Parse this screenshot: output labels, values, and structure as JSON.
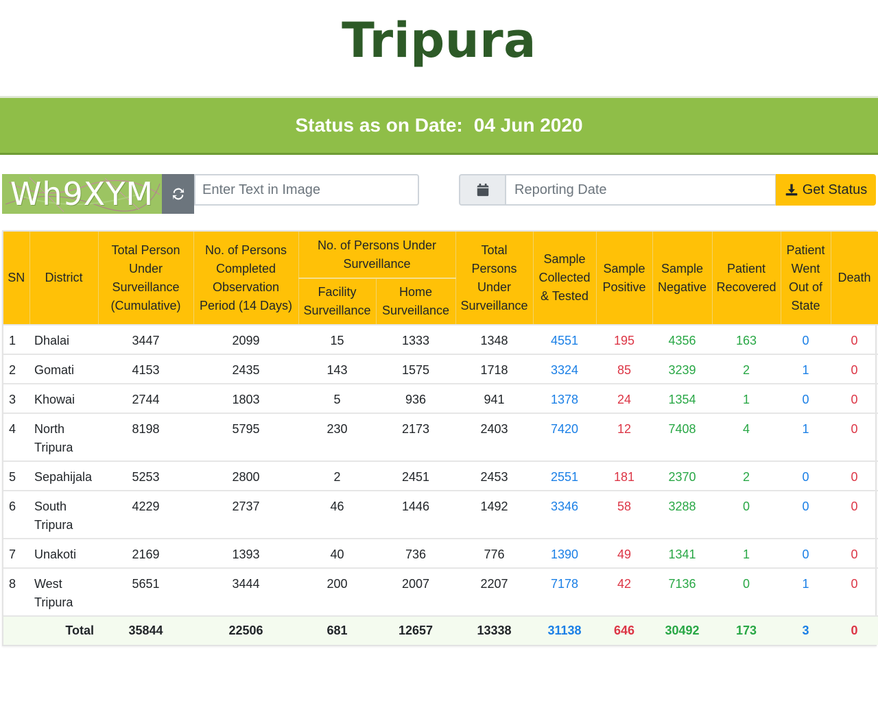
{
  "page_title": "Tripura",
  "status": {
    "label": "Status as on Date:",
    "date": "04 Jun 2020"
  },
  "captcha": {
    "text": "Wh9XYM",
    "input_placeholder": "Enter Text in Image"
  },
  "date_field": {
    "placeholder": "Reporting Date",
    "icon": "calendar-icon"
  },
  "get_status_button": {
    "label": "Get Status",
    "icon": "download-icon"
  },
  "colors": {
    "title": "#2d5a27",
    "status_bar": "#8fbe48",
    "header": "#ffc107",
    "collected": "#1a7fe6",
    "positive": "#dc3545",
    "negative": "#28a745"
  },
  "table": {
    "headers": {
      "sn": "SN",
      "district": "District",
      "total_under_surveillance_cum": "Total Person Under Surveillance (Cumulative)",
      "completed_observation": "No. of Persons Completed Observation Period (14 Days)",
      "under_surveillance_group": "No. of Persons Under Surveillance",
      "facility": "Facility Surveillance",
      "home": "Home Surveillance",
      "total_under_surveillance": "Total Persons Under Surveillance",
      "sample_collected": "Sample Collected & Tested",
      "sample_positive": "Sample Positive",
      "sample_negative": "Sample Negative",
      "patient_recovered": "Patient Recovered",
      "patient_out": "Patient Went Out of State",
      "death": "Death"
    },
    "rows": [
      {
        "sn": "1",
        "district": "Dhalai",
        "cum": "3447",
        "completed": "2099",
        "facility": "15",
        "home": "1333",
        "total": "1348",
        "collected": "4551",
        "positive": "195",
        "negative": "4356",
        "recovered": "163",
        "out": "0",
        "death": "0"
      },
      {
        "sn": "2",
        "district": "Gomati",
        "cum": "4153",
        "completed": "2435",
        "facility": "143",
        "home": "1575",
        "total": "1718",
        "collected": "3324",
        "positive": "85",
        "negative": "3239",
        "recovered": "2",
        "out": "1",
        "death": "0"
      },
      {
        "sn": "3",
        "district": "Khowai",
        "cum": "2744",
        "completed": "1803",
        "facility": "5",
        "home": "936",
        "total": "941",
        "collected": "1378",
        "positive": "24",
        "negative": "1354",
        "recovered": "1",
        "out": "0",
        "death": "0"
      },
      {
        "sn": "4",
        "district": "North Tripura",
        "cum": "8198",
        "completed": "5795",
        "facility": "230",
        "home": "2173",
        "total": "2403",
        "collected": "7420",
        "positive": "12",
        "negative": "7408",
        "recovered": "4",
        "out": "1",
        "death": "0"
      },
      {
        "sn": "5",
        "district": "Sepahijala",
        "cum": "5253",
        "completed": "2800",
        "facility": "2",
        "home": "2451",
        "total": "2453",
        "collected": "2551",
        "positive": "181",
        "negative": "2370",
        "recovered": "2",
        "out": "0",
        "death": "0"
      },
      {
        "sn": "6",
        "district": "South Tripura",
        "cum": "4229",
        "completed": "2737",
        "facility": "46",
        "home": "1446",
        "total": "1492",
        "collected": "3346",
        "positive": "58",
        "negative": "3288",
        "recovered": "0",
        "out": "0",
        "death": "0"
      },
      {
        "sn": "7",
        "district": "Unakoti",
        "cum": "2169",
        "completed": "1393",
        "facility": "40",
        "home": "736",
        "total": "776",
        "collected": "1390",
        "positive": "49",
        "negative": "1341",
        "recovered": "1",
        "out": "0",
        "death": "0"
      },
      {
        "sn": "8",
        "district": "West Tripura",
        "cum": "5651",
        "completed": "3444",
        "facility": "200",
        "home": "2007",
        "total": "2207",
        "collected": "7178",
        "positive": "42",
        "negative": "7136",
        "recovered": "0",
        "out": "1",
        "death": "0"
      }
    ],
    "total": {
      "label": "Total",
      "cum": "35844",
      "completed": "22506",
      "facility": "681",
      "home": "12657",
      "total": "13338",
      "collected": "31138",
      "positive": "646",
      "negative": "30492",
      "recovered": "173",
      "out": "3",
      "death": "0"
    }
  }
}
